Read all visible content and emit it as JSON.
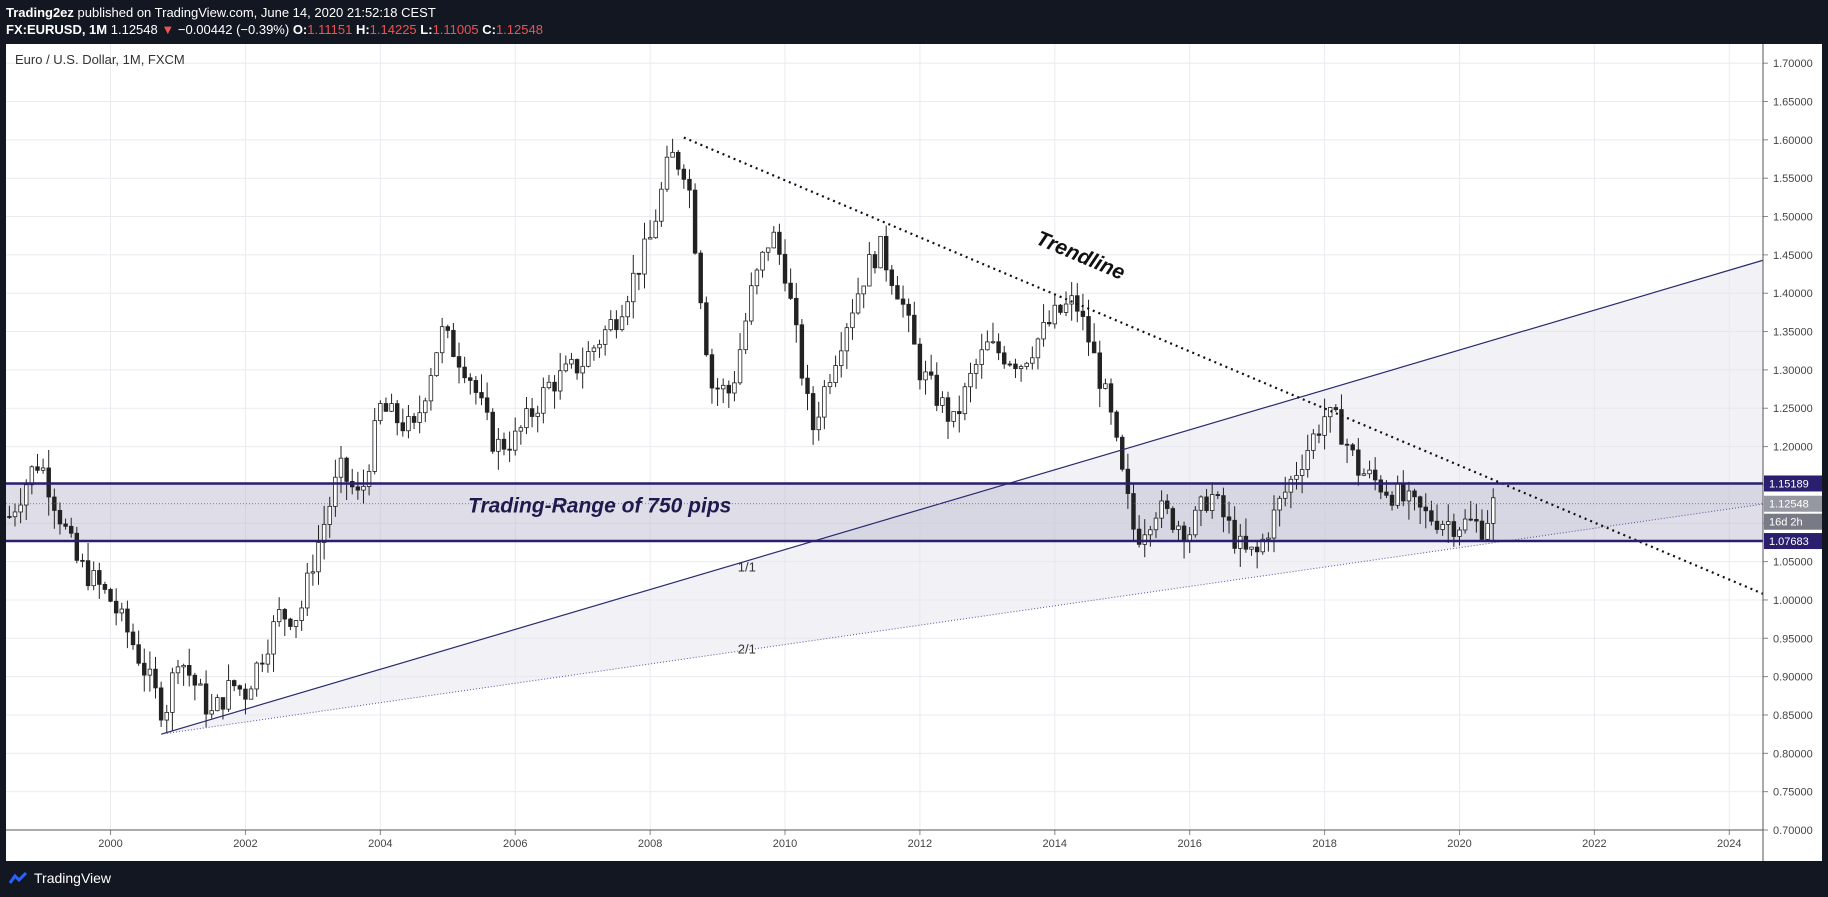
{
  "header": {
    "author": "Trading2ez",
    "published_text": "published on TradingView.com, June 14, 2020 21:52:18 CEST",
    "symbol": "FX:EURUSD, 1M",
    "price": "1.12548",
    "change_arrow": "▼",
    "change": "−0.00442 (−0.39%)",
    "o_label": "O:",
    "o_value": "1.11151",
    "h_label": "H:",
    "h_value": "1.14225",
    "l_label": "L:",
    "l_value": "1.11005",
    "c_label": "C:",
    "c_value": "1.12548"
  },
  "footer": {
    "brand": "TradingView"
  },
  "colors": {
    "range_line": "#2a1f6e",
    "range_text": "#1f1a4d",
    "price_tag": "#9598a1",
    "countdown_tag": "#787b86"
  },
  "chart_data": {
    "type": "candlestick",
    "title": "Euro / U.S. Dollar, 1M, FXCM",
    "x_range": [
      1998.45,
      2024.5
    ],
    "ylim": [
      0.7,
      1.725
    ],
    "y_ticks": [
      "0.70000",
      "0.75000",
      "0.80000",
      "0.85000",
      "0.90000",
      "0.95000",
      "1.00000",
      "1.05000",
      "1.10000",
      "1.15000",
      "1.20000",
      "1.25000",
      "1.30000",
      "1.35000",
      "1.40000",
      "1.45000",
      "1.50000",
      "1.55000",
      "1.60000",
      "1.65000",
      "1.70000"
    ],
    "x_ticks": [
      2000,
      2002,
      2004,
      2006,
      2008,
      2010,
      2012,
      2014,
      2016,
      2018,
      2020,
      2022,
      2024
    ],
    "price_path": [
      [
        1998.45,
        1.1
      ],
      [
        1998.9,
        1.18
      ],
      [
        1999.0,
        1.17
      ],
      [
        1999.5,
        1.05
      ],
      [
        2000.0,
        1.0
      ],
      [
        2000.3,
        0.95
      ],
      [
        2000.8,
        0.85
      ],
      [
        2001.0,
        0.93
      ],
      [
        2001.5,
        0.85
      ],
      [
        2001.8,
        0.89
      ],
      [
        2002.0,
        0.88
      ],
      [
        2002.5,
        0.98
      ],
      [
        2002.8,
        0.98
      ],
      [
        2003.0,
        1.05
      ],
      [
        2003.4,
        1.17
      ],
      [
        2003.7,
        1.13
      ],
      [
        2004.0,
        1.25
      ],
      [
        2004.5,
        1.22
      ],
      [
        2004.9,
        1.35
      ],
      [
        2005.3,
        1.3
      ],
      [
        2005.7,
        1.2
      ],
      [
        2006.0,
        1.21
      ],
      [
        2006.5,
        1.28
      ],
      [
        2007.0,
        1.31
      ],
      [
        2007.5,
        1.37
      ],
      [
        2008.0,
        1.47
      ],
      [
        2008.3,
        1.58
      ],
      [
        2008.55,
        1.56
      ],
      [
        2008.75,
        1.4
      ],
      [
        2008.9,
        1.28
      ],
      [
        2009.2,
        1.27
      ],
      [
        2009.5,
        1.4
      ],
      [
        2009.8,
        1.48
      ],
      [
        2010.0,
        1.43
      ],
      [
        2010.4,
        1.22
      ],
      [
        2010.6,
        1.28
      ],
      [
        2010.9,
        1.36
      ],
      [
        2011.2,
        1.43
      ],
      [
        2011.4,
        1.46
      ],
      [
        2011.7,
        1.4
      ],
      [
        2012.0,
        1.3
      ],
      [
        2012.5,
        1.23
      ],
      [
        2012.8,
        1.3
      ],
      [
        2013.0,
        1.33
      ],
      [
        2013.5,
        1.31
      ],
      [
        2014.0,
        1.37
      ],
      [
        2014.3,
        1.39
      ],
      [
        2014.5,
        1.34
      ],
      [
        2014.8,
        1.25
      ],
      [
        2015.0,
        1.16
      ],
      [
        2015.2,
        1.08
      ],
      [
        2015.5,
        1.12
      ],
      [
        2016.0,
        1.09
      ],
      [
        2016.3,
        1.14
      ],
      [
        2016.8,
        1.06
      ],
      [
        2017.0,
        1.06
      ],
      [
        2017.3,
        1.12
      ],
      [
        2017.7,
        1.19
      ],
      [
        2018.0,
        1.24
      ],
      [
        2018.2,
        1.23
      ],
      [
        2018.5,
        1.17
      ],
      [
        2019.0,
        1.14
      ],
      [
        2019.5,
        1.11
      ],
      [
        2019.9,
        1.1
      ],
      [
        2020.2,
        1.1
      ],
      [
        2020.35,
        1.095
      ],
      [
        2020.5,
        1.125
      ]
    ],
    "candle_months": [
      1998.5,
      2020.5
    ],
    "annotations": {
      "trendline_label": "Trendline",
      "range_label": "Trading-Range of 750 pips",
      "ratio_1": "1/1",
      "ratio_2": "2/1",
      "trendline": [
        [
          2008.5,
          1.603
        ],
        [
          2024.5,
          1.008
        ]
      ],
      "line_1_1": [
        [
          2000.75,
          0.825
        ],
        [
          2024.5,
          1.443
        ]
      ],
      "line_2_1": [
        [
          2000.75,
          0.825
        ],
        [
          2024.5,
          1.125
        ]
      ],
      "range_high": 1.15189,
      "range_low": 1.07683,
      "last_price": 1.12548,
      "ratio_1_pos": [
        2009.3,
        1.037
      ],
      "ratio_2_pos": [
        2009.3,
        0.93
      ],
      "range_label_pos": [
        2005.3,
        1.114
      ],
      "trendline_label_pos": [
        2013.7,
        1.465
      ]
    },
    "price_tags": {
      "high": "1.15189",
      "last": "1.12548",
      "countdown": "16d 2h",
      "low": "1.07683"
    }
  }
}
